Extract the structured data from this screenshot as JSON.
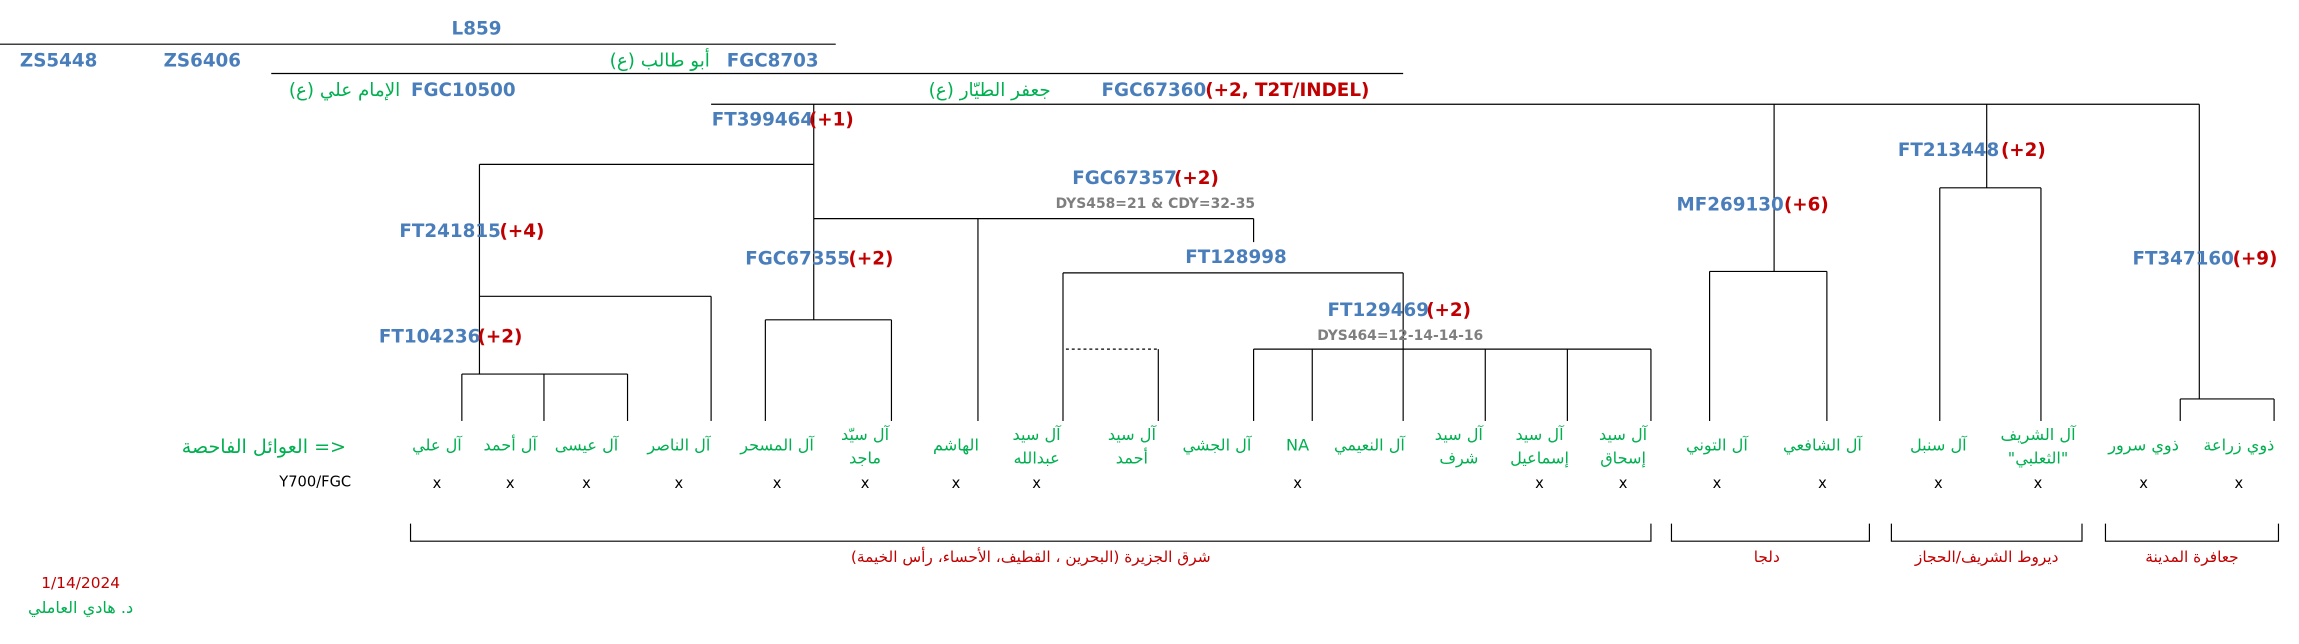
{
  "lineage": [
    {
      "id": "L859"
    },
    {
      "id": "ZS5448"
    },
    {
      "id": "ZS6406"
    },
    {
      "id": "FGC8703",
      "name": "أبو طالب (ع)"
    },
    {
      "id": "FGC10500",
      "name": "الإمام علي (ع)"
    },
    {
      "id": "FGC67360",
      "name": "جعفر الطيّار (ع)",
      "mutations": "(+2, T2T/INDEL)"
    }
  ],
  "nodes": [
    {
      "id": "FT399464",
      "mutations": "(+1)"
    },
    {
      "id": "FGC67357",
      "mutations": "(+2)",
      "note": "DYS458=21 & CDY=32-35"
    },
    {
      "id": "FT213448",
      "mutations": "(+2)"
    },
    {
      "id": "FT241815",
      "mutations": "(+4)"
    },
    {
      "id": "MF269130",
      "mutations": "(+6)"
    },
    {
      "id": "FGC67355",
      "mutations": "(+2)"
    },
    {
      "id": "FT128998"
    },
    {
      "id": "FT347160",
      "mutations": "(+9)"
    },
    {
      "id": "FT129469",
      "mutations": "(+2)",
      "note": "DYS464=12-14-14-16"
    },
    {
      "id": "FT104236",
      "mutations": "(+2)"
    }
  ],
  "families_label": "العوائل الفاحصة =>",
  "test_label": "Y700/FGC",
  "families": [
    {
      "name": [
        "آل علي"
      ],
      "mark": "x"
    },
    {
      "name": [
        "آل أحمد"
      ],
      "mark": "x"
    },
    {
      "name": [
        "آل عيسى"
      ],
      "mark": "x"
    },
    {
      "name": [
        "آل الناصر"
      ],
      "mark": "x"
    },
    {
      "name": [
        "آل المسحر"
      ],
      "mark": "x"
    },
    {
      "name": [
        "آل سيّد",
        "ماجد"
      ],
      "mark": "x"
    },
    {
      "name": [
        "الهاشم"
      ],
      "mark": "x"
    },
    {
      "name": [
        "آل سيد",
        "عبدالله"
      ],
      "mark": "x"
    },
    {
      "name": [
        "آل سيد",
        "أحمد"
      ]
    },
    {
      "name": [
        "آل الجشي"
      ]
    },
    {
      "name": [
        "NA"
      ],
      "mark": "x"
    },
    {
      "name": [
        "آل النعيمي"
      ]
    },
    {
      "name": [
        "آل سيد",
        "شرف"
      ]
    },
    {
      "name": [
        "آل سيد",
        "إسماعيل"
      ],
      "mark": "x"
    },
    {
      "name": [
        "آل سيد",
        "إسحاق"
      ],
      "mark": "x"
    },
    {
      "name": [
        "آل التوني"
      ],
      "mark": "x"
    },
    {
      "name": [
        "آل الشافعي"
      ],
      "mark": "x"
    },
    {
      "name": [
        "آل سنبل"
      ],
      "mark": "x"
    },
    {
      "name": [
        "آل الشريف",
        "\"الثعلبي\""
      ],
      "mark": "x"
    },
    {
      "name": [
        "ذوي سرور"
      ],
      "mark": "x"
    },
    {
      "name": [
        "ذوي زراعة"
      ],
      "mark": "x"
    }
  ],
  "regions": [
    "شرق الجزيرة (البحرين ، القطيف، الأحساء، رأس الخيمة)",
    "دلجا",
    "ديروط الشريف/الحجاز",
    "جعافرة المدينة"
  ],
  "footer": {
    "date": "1/14/2024",
    "author": "د. هادي العاملي"
  }
}
